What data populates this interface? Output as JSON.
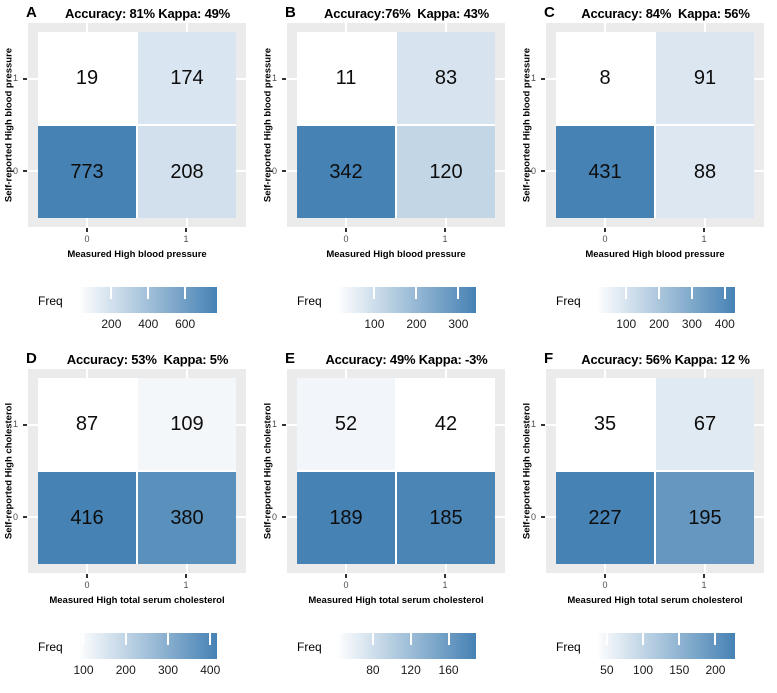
{
  "colors": {
    "low": "#FFFFFF",
    "high": "#4682B4",
    "panel_bg": "#EBEBEB",
    "tick_text": "#4D4D4D"
  },
  "chart_data": [
    {
      "type": "heatmap",
      "tag": "A",
      "title": "Accuracy: 81% Kappa: 49%",
      "xlabel": "Measured High blood pressure",
      "ylabel": "Self-reported High blood pressure",
      "x_categories": [
        "0",
        "1"
      ],
      "y_categories": [
        "0",
        "1"
      ],
      "rows": [
        {
          "y": "1",
          "values": [
            19,
            174
          ]
        },
        {
          "y": "0",
          "values": [
            773,
            208
          ]
        }
      ],
      "legend_label": "Freq",
      "legend_ticks": [
        200,
        400,
        600
      ],
      "scale_range": [
        19,
        773
      ]
    },
    {
      "type": "heatmap",
      "tag": "B",
      "title": "Accuracy:76%  Kappa: 43%",
      "xlabel": "Measured High blood pressure",
      "ylabel": "Self-reported High blood pressure",
      "x_categories": [
        "0",
        "1"
      ],
      "y_categories": [
        "0",
        "1"
      ],
      "rows": [
        {
          "y": "1",
          "values": [
            11,
            83
          ]
        },
        {
          "y": "0",
          "values": [
            342,
            120
          ]
        }
      ],
      "legend_label": "Freq",
      "legend_ticks": [
        100,
        200,
        300
      ],
      "scale_range": [
        11,
        342
      ]
    },
    {
      "type": "heatmap",
      "tag": "C",
      "title": "Accuracy: 84%  Kappa: 56%",
      "xlabel": "Measured High blood pressure",
      "ylabel": "Self-reported High blood pressure",
      "x_categories": [
        "0",
        "1"
      ],
      "y_categories": [
        "0",
        "1"
      ],
      "rows": [
        {
          "y": "1",
          "values": [
            8,
            91
          ]
        },
        {
          "y": "0",
          "values": [
            431,
            88
          ]
        }
      ],
      "legend_label": "Freq",
      "legend_ticks": [
        100,
        200,
        300,
        400
      ],
      "scale_range": [
        8,
        431
      ]
    },
    {
      "type": "heatmap",
      "tag": "D",
      "title": "Accuracy: 53%  Kappa: 5%",
      "xlabel": "Measured High total serum cholesterol",
      "ylabel": "Self-reported High cholesterol",
      "x_categories": [
        "0",
        "1"
      ],
      "y_categories": [
        "0",
        "1"
      ],
      "rows": [
        {
          "y": "1",
          "values": [
            87,
            109
          ]
        },
        {
          "y": "0",
          "values": [
            416,
            380
          ]
        }
      ],
      "legend_label": "Freq",
      "legend_ticks": [
        100,
        200,
        300,
        400
      ],
      "scale_range": [
        87,
        416
      ]
    },
    {
      "type": "heatmap",
      "tag": "E",
      "title": "Accuracy: 49% Kappa: -3%",
      "xlabel": "Measured High total serum cholesterol",
      "ylabel": "Self-reported High cholesterol",
      "x_categories": [
        "0",
        "1"
      ],
      "y_categories": [
        "0",
        "1"
      ],
      "rows": [
        {
          "y": "1",
          "values": [
            52,
            42
          ]
        },
        {
          "y": "0",
          "values": [
            189,
            185
          ]
        }
      ],
      "legend_label": "Freq",
      "legend_ticks": [
        80,
        120,
        160
      ],
      "scale_range": [
        42,
        189
      ]
    },
    {
      "type": "heatmap",
      "tag": "F",
      "title": "Accuracy: 56% Kappa: 12 %",
      "xlabel": "Measured High total serum cholesterol",
      "ylabel": "Self-reported High cholesterol",
      "x_categories": [
        "0",
        "1"
      ],
      "y_categories": [
        "0",
        "1"
      ],
      "rows": [
        {
          "y": "1",
          "values": [
            35,
            67
          ]
        },
        {
          "y": "0",
          "values": [
            227,
            195
          ]
        }
      ],
      "legend_label": "Freq",
      "legend_ticks": [
        50,
        100,
        150,
        200
      ],
      "scale_range": [
        35,
        227
      ]
    }
  ]
}
